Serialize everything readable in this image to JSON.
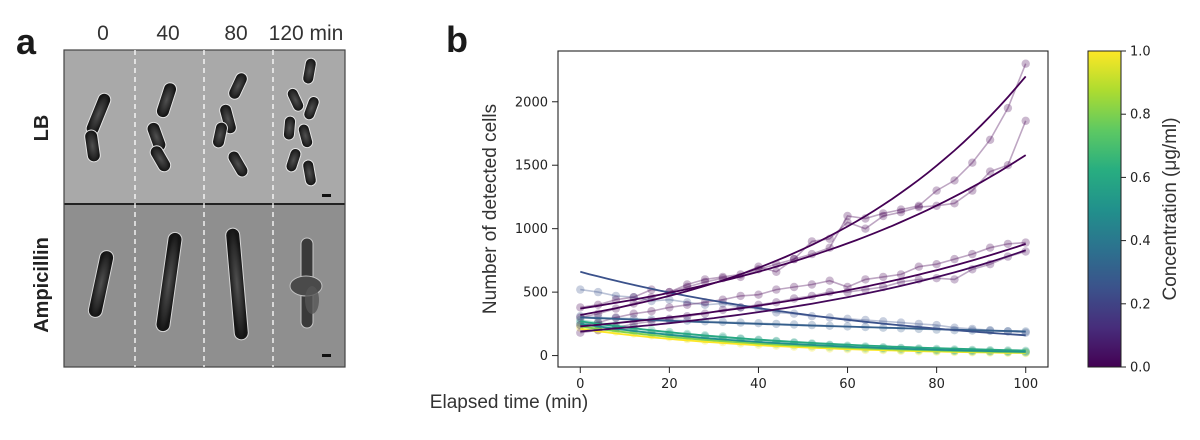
{
  "panel_a": {
    "letter": "a",
    "time_labels": [
      "0",
      "40",
      "80",
      "120 min"
    ],
    "row_labels": [
      "LB",
      "Ampicillin"
    ]
  },
  "chart_data": {
    "type": "scatter",
    "panel_letter": "b",
    "title": "",
    "xlabel": "Elapsed time (min)",
    "ylabel": "Number of detected cells",
    "xlim": [
      -5,
      105
    ],
    "ylim": [
      -90,
      2400
    ],
    "xticks": [
      0,
      20,
      40,
      60,
      80,
      100
    ],
    "yticks": [
      0,
      500,
      1000,
      1500,
      2000
    ],
    "grid": false,
    "colorbar": {
      "label": "Concentration (μg/ml)",
      "range": [
        0.0,
        1.0
      ],
      "ticks": [
        "0.0",
        "0.2",
        "0.4",
        "0.6",
        "0.8",
        "1.0"
      ],
      "colormap": "viridis"
    },
    "series": [
      {
        "concentration": 0.0,
        "fit_start": 320,
        "fit_end": 2200,
        "points": [
          [
            0,
            300
          ],
          [
            4,
            330
          ],
          [
            8,
            370
          ],
          [
            12,
            410
          ],
          [
            16,
            460
          ],
          [
            20,
            500
          ],
          [
            24,
            540
          ],
          [
            28,
            580
          ],
          [
            32,
            610
          ],
          [
            36,
            620
          ],
          [
            40,
            680
          ],
          [
            44,
            720
          ],
          [
            48,
            760
          ],
          [
            52,
            800
          ],
          [
            56,
            850
          ],
          [
            60,
            1100
          ],
          [
            64,
            1080
          ],
          [
            68,
            1120
          ],
          [
            72,
            1150
          ],
          [
            76,
            1180
          ],
          [
            80,
            1300
          ],
          [
            84,
            1380
          ],
          [
            88,
            1520
          ],
          [
            92,
            1700
          ],
          [
            96,
            1950
          ],
          [
            100,
            2300
          ]
        ]
      },
      {
        "concentration": 0.0,
        "fit_start": 370,
        "fit_end": 1580,
        "points": [
          [
            0,
            380
          ],
          [
            4,
            400
          ],
          [
            8,
            440
          ],
          [
            12,
            460
          ],
          [
            16,
            520
          ],
          [
            20,
            500
          ],
          [
            24,
            560
          ],
          [
            28,
            600
          ],
          [
            32,
            620
          ],
          [
            36,
            640
          ],
          [
            40,
            700
          ],
          [
            44,
            660
          ],
          [
            48,
            760
          ],
          [
            52,
            900
          ],
          [
            56,
            920
          ],
          [
            60,
            1050
          ],
          [
            64,
            1000
          ],
          [
            68,
            1100
          ],
          [
            72,
            1130
          ],
          [
            76,
            1170
          ],
          [
            80,
            1180
          ],
          [
            84,
            1200
          ],
          [
            88,
            1300
          ],
          [
            92,
            1450
          ],
          [
            96,
            1500
          ],
          [
            100,
            1850
          ]
        ]
      },
      {
        "concentration": 0.0,
        "fit_start": 230,
        "fit_end": 880,
        "points": [
          [
            0,
            240
          ],
          [
            4,
            260
          ],
          [
            8,
            300
          ],
          [
            12,
            330
          ],
          [
            16,
            350
          ],
          [
            20,
            380
          ],
          [
            24,
            400
          ],
          [
            28,
            420
          ],
          [
            32,
            440
          ],
          [
            36,
            470
          ],
          [
            40,
            480
          ],
          [
            44,
            520
          ],
          [
            48,
            540
          ],
          [
            52,
            560
          ],
          [
            56,
            590
          ],
          [
            60,
            540
          ],
          [
            64,
            600
          ],
          [
            68,
            620
          ],
          [
            72,
            640
          ],
          [
            76,
            700
          ],
          [
            80,
            720
          ],
          [
            84,
            760
          ],
          [
            88,
            800
          ],
          [
            92,
            850
          ],
          [
            96,
            880
          ],
          [
            100,
            890
          ]
        ]
      },
      {
        "concentration": 0.02,
        "fit_start": 190,
        "fit_end": 830,
        "points": [
          [
            0,
            180
          ],
          [
            4,
            200
          ],
          [
            8,
            220
          ],
          [
            12,
            250
          ],
          [
            16,
            270
          ],
          [
            20,
            290
          ],
          [
            24,
            310
          ],
          [
            28,
            330
          ],
          [
            32,
            360
          ],
          [
            36,
            380
          ],
          [
            40,
            400
          ],
          [
            44,
            420
          ],
          [
            48,
            450
          ],
          [
            52,
            470
          ],
          [
            56,
            500
          ],
          [
            60,
            500
          ],
          [
            64,
            520
          ],
          [
            68,
            540
          ],
          [
            72,
            580
          ],
          [
            76,
            600
          ],
          [
            80,
            610
          ],
          [
            84,
            600
          ],
          [
            88,
            680
          ],
          [
            92,
            720
          ],
          [
            96,
            780
          ],
          [
            100,
            820
          ]
        ]
      },
      {
        "concentration": 0.25,
        "fit_start": 660,
        "fit_end": 160,
        "points": [
          [
            0,
            520
          ],
          [
            4,
            500
          ],
          [
            8,
            470
          ],
          [
            12,
            460
          ],
          [
            16,
            430
          ],
          [
            20,
            440
          ],
          [
            24,
            420
          ],
          [
            28,
            400
          ],
          [
            32,
            410
          ],
          [
            36,
            380
          ],
          [
            40,
            370
          ],
          [
            44,
            340
          ],
          [
            48,
            330
          ],
          [
            52,
            310
          ],
          [
            56,
            300
          ],
          [
            60,
            290
          ],
          [
            64,
            280
          ],
          [
            68,
            270
          ],
          [
            72,
            260
          ],
          [
            76,
            250
          ],
          [
            80,
            240
          ],
          [
            84,
            220
          ],
          [
            88,
            210
          ],
          [
            92,
            200
          ],
          [
            96,
            190
          ],
          [
            100,
            180
          ]
        ]
      },
      {
        "concentration": 0.3,
        "fit_start": 300,
        "fit_end": 190,
        "points": [
          [
            0,
            310
          ],
          [
            4,
            300
          ],
          [
            8,
            295
          ],
          [
            12,
            290
          ],
          [
            16,
            285
          ],
          [
            20,
            280
          ],
          [
            24,
            275
          ],
          [
            28,
            270
          ],
          [
            32,
            265
          ],
          [
            36,
            260
          ],
          [
            40,
            255
          ],
          [
            44,
            250
          ],
          [
            48,
            245
          ],
          [
            52,
            240
          ],
          [
            56,
            235
          ],
          [
            60,
            230
          ],
          [
            64,
            225
          ],
          [
            68,
            220
          ],
          [
            72,
            215
          ],
          [
            76,
            210
          ],
          [
            80,
            205
          ],
          [
            84,
            200
          ],
          [
            88,
            198
          ],
          [
            92,
            195
          ],
          [
            96,
            192
          ],
          [
            100,
            190
          ]
        ]
      },
      {
        "concentration": 0.5,
        "fit_start": 250,
        "fit_end": 30,
        "points": [
          [
            0,
            260
          ],
          [
            4,
            240
          ],
          [
            8,
            220
          ],
          [
            12,
            200
          ],
          [
            16,
            180
          ],
          [
            20,
            170
          ],
          [
            24,
            160
          ],
          [
            28,
            150
          ],
          [
            32,
            140
          ],
          [
            36,
            130
          ],
          [
            40,
            120
          ],
          [
            44,
            110
          ],
          [
            48,
            100
          ],
          [
            52,
            90
          ],
          [
            56,
            80
          ],
          [
            60,
            70
          ],
          [
            64,
            65
          ],
          [
            68,
            60
          ],
          [
            72,
            55
          ],
          [
            76,
            50
          ],
          [
            80,
            45
          ],
          [
            84,
            40
          ],
          [
            88,
            38
          ],
          [
            92,
            35
          ],
          [
            96,
            32
          ],
          [
            100,
            30
          ]
        ]
      },
      {
        "concentration": 0.6,
        "fit_start": 270,
        "fit_end": 40,
        "points": [
          [
            0,
            280
          ],
          [
            4,
            260
          ],
          [
            8,
            240
          ],
          [
            12,
            220
          ],
          [
            16,
            200
          ],
          [
            20,
            185
          ],
          [
            24,
            170
          ],
          [
            28,
            160
          ],
          [
            32,
            150
          ],
          [
            36,
            135
          ],
          [
            40,
            125
          ],
          [
            44,
            115
          ],
          [
            48,
            105
          ],
          [
            52,
            95
          ],
          [
            56,
            85
          ],
          [
            60,
            78
          ],
          [
            64,
            72
          ],
          [
            68,
            66
          ],
          [
            72,
            60
          ],
          [
            76,
            56
          ],
          [
            80,
            52
          ],
          [
            84,
            48
          ],
          [
            88,
            45
          ],
          [
            92,
            42
          ],
          [
            96,
            40
          ],
          [
            100,
            38
          ]
        ]
      },
      {
        "concentration": 0.8,
        "fit_start": 230,
        "fit_end": 25,
        "points": [
          [
            0,
            240
          ],
          [
            4,
            220
          ],
          [
            8,
            200
          ],
          [
            12,
            185
          ],
          [
            16,
            170
          ],
          [
            20,
            155
          ],
          [
            24,
            140
          ],
          [
            28,
            130
          ],
          [
            32,
            120
          ],
          [
            36,
            110
          ],
          [
            40,
            100
          ],
          [
            44,
            90
          ],
          [
            48,
            82
          ],
          [
            52,
            74
          ],
          [
            56,
            66
          ],
          [
            60,
            60
          ],
          [
            64,
            55
          ],
          [
            68,
            50
          ],
          [
            72,
            45
          ],
          [
            76,
            42
          ],
          [
            80,
            38
          ],
          [
            84,
            35
          ],
          [
            88,
            32
          ],
          [
            92,
            30
          ],
          [
            96,
            28
          ],
          [
            100,
            25
          ]
        ]
      },
      {
        "concentration": 1.0,
        "fit_start": 210,
        "fit_end": 20,
        "points": [
          [
            0,
            220
          ],
          [
            4,
            200
          ],
          [
            8,
            190
          ],
          [
            12,
            175
          ],
          [
            16,
            160
          ],
          [
            20,
            145
          ],
          [
            24,
            130
          ],
          [
            28,
            118
          ],
          [
            32,
            106
          ],
          [
            36,
            96
          ],
          [
            40,
            86
          ],
          [
            44,
            78
          ],
          [
            48,
            70
          ],
          [
            52,
            62
          ],
          [
            56,
            56
          ],
          [
            60,
            50
          ],
          [
            64,
            45
          ],
          [
            68,
            42
          ],
          [
            72,
            38
          ],
          [
            76,
            34
          ],
          [
            80,
            31
          ],
          [
            84,
            28
          ],
          [
            88,
            26
          ],
          [
            92,
            24
          ],
          [
            96,
            22
          ],
          [
            100,
            20
          ]
        ]
      }
    ]
  }
}
